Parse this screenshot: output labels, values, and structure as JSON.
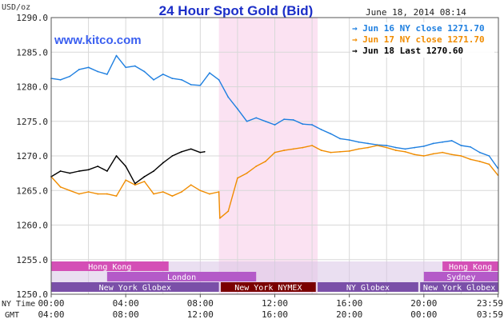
{
  "header": {
    "title": "24 Hour Spot Gold (Bid)",
    "date": "June 18, 2014 08:14",
    "y_unit": "USD/oz",
    "watermark": "www.kitco.com"
  },
  "legend": [
    {
      "label": "Jun 16 NY close 1271.70",
      "color": "#1e7fe0"
    },
    {
      "label": "Jun 17 NY close 1271.70",
      "color": "#f08c00"
    },
    {
      "label": "Jun 18 Last 1270.60",
      "color": "#000000"
    }
  ],
  "axis_rows": {
    "ny_time_label": "NY Time",
    "gmt_label": "GMT",
    "ny_time_ticks": [
      "00:00",
      "04:00",
      "08:00",
      "12:00",
      "16:00",
      "20:00",
      "23:59"
    ],
    "gmt_ticks": [
      "04:00",
      "08:00",
      "12:00",
      "16:00",
      "20:00",
      "00:00",
      "03:59"
    ]
  },
  "sessions": [
    {
      "label": "Hong Kong",
      "row": 0,
      "start": 0.0,
      "end": 6.3,
      "color": "#d44fb6",
      "text_color": "#ffffff"
    },
    {
      "label": "Hong Kong",
      "row": 0,
      "start": 21.0,
      "end": 24.0,
      "color": "#d44fb6",
      "text_color": "#ffffff"
    },
    {
      "label": "London",
      "row": 1,
      "start": 3.0,
      "end": 11.0,
      "color": "#b45ac8",
      "text_color": "#ffffff"
    },
    {
      "label": "Sydney",
      "row": 1,
      "start": 20.0,
      "end": 24.0,
      "color": "#b45ac8",
      "text_color": "#ffffff"
    },
    {
      "label": "New York Globex",
      "row": 2,
      "start": 0.0,
      "end": 9.0,
      "color": "#7a4fa8",
      "text_color": "#ffffff"
    },
    {
      "label": "New York NYMEX",
      "row": 2,
      "start": 9.1,
      "end": 14.2,
      "color": "#7a0000",
      "text_color": "#ffffff"
    },
    {
      "label": "NY Globex",
      "row": 2,
      "start": 14.3,
      "end": 19.7,
      "color": "#7a4fa8",
      "text_color": "#ffffff"
    },
    {
      "label": "New York Globex",
      "row": 2,
      "start": 19.8,
      "end": 24.0,
      "color": "#7a4fa8",
      "text_color": "#ffffff"
    }
  ],
  "colors": {
    "background": "#ffffff",
    "grid": "#d8d8d8",
    "title": "#1c2fc8",
    "nymex_highlight": "#fbe2f2",
    "session_base": "#d8c5e6"
  },
  "chart_data": {
    "type": "line",
    "title": "24 Hour Spot Gold (Bid)",
    "xlabel": "NY Time",
    "ylabel": "USD/oz",
    "x_unit": "hours (NY time)",
    "xlim": [
      0,
      24
    ],
    "ylim": [
      1250,
      1290
    ],
    "yticks": [
      1250.0,
      1255.0,
      1260.0,
      1265.0,
      1270.0,
      1275.0,
      1280.0,
      1285.0,
      1290.0
    ],
    "grid": true,
    "legend_position": "top-right",
    "highlight_band": {
      "start": 9.0,
      "end": 14.3
    },
    "series": [
      {
        "name": "Jun 16 NY close 1271.70",
        "color": "#1e7fe0",
        "x": [
          0.0,
          0.5,
          1.0,
          1.5,
          2.0,
          2.5,
          3.0,
          3.5,
          4.0,
          4.5,
          5.0,
          5.5,
          6.0,
          6.5,
          7.0,
          7.5,
          8.0,
          8.5,
          9.0,
          9.5,
          10.0,
          10.5,
          11.0,
          11.5,
          12.0,
          12.5,
          13.0,
          13.5,
          14.0,
          14.5,
          15.0,
          15.5,
          16.0,
          16.5,
          17.0,
          17.5,
          18.0,
          18.5,
          19.0,
          19.5,
          20.0,
          20.5,
          21.0,
          21.5,
          22.0,
          22.5,
          23.0,
          23.5,
          23.98
        ],
        "y": [
          1281.2,
          1281.0,
          1281.5,
          1282.5,
          1282.8,
          1282.2,
          1281.8,
          1284.5,
          1282.8,
          1283.0,
          1282.2,
          1281.0,
          1281.8,
          1281.2,
          1281.0,
          1280.3,
          1280.2,
          1282.0,
          1281.0,
          1278.5,
          1276.8,
          1275.0,
          1275.5,
          1275.0,
          1274.5,
          1275.3,
          1275.2,
          1274.6,
          1274.5,
          1273.8,
          1273.2,
          1272.5,
          1272.3,
          1272.0,
          1271.8,
          1271.6,
          1271.5,
          1271.2,
          1271.0,
          1271.2,
          1271.4,
          1271.8,
          1272.0,
          1272.2,
          1271.5,
          1271.3,
          1270.5,
          1270.0,
          1268.2
        ]
      },
      {
        "name": "Jun 17 NY close 1271.70",
        "color": "#f08c00",
        "x": [
          0.0,
          0.5,
          1.0,
          1.5,
          2.0,
          2.5,
          3.0,
          3.5,
          4.0,
          4.5,
          5.0,
          5.5,
          6.0,
          6.5,
          7.0,
          7.5,
          8.0,
          8.5,
          9.0,
          9.05,
          9.5,
          10.0,
          10.5,
          11.0,
          11.5,
          12.0,
          12.5,
          13.0,
          13.5,
          14.0,
          14.5,
          15.0,
          15.5,
          16.0,
          16.5,
          17.0,
          17.5,
          18.0,
          18.5,
          19.0,
          19.5,
          20.0,
          20.5,
          21.0,
          21.5,
          22.0,
          22.5,
          23.0,
          23.5,
          23.98
        ],
        "y": [
          1267.0,
          1265.5,
          1265.0,
          1264.5,
          1264.8,
          1264.5,
          1264.5,
          1264.2,
          1266.5,
          1265.8,
          1266.3,
          1264.5,
          1264.8,
          1264.2,
          1264.8,
          1265.8,
          1265.0,
          1264.5,
          1264.8,
          1261.0,
          1262.0,
          1266.8,
          1267.5,
          1268.5,
          1269.2,
          1270.5,
          1270.8,
          1271.0,
          1271.2,
          1271.5,
          1270.8,
          1270.5,
          1270.6,
          1270.7,
          1271.0,
          1271.2,
          1271.5,
          1271.2,
          1270.8,
          1270.6,
          1270.2,
          1270.0,
          1270.3,
          1270.5,
          1270.2,
          1270.0,
          1269.5,
          1269.2,
          1268.8,
          1267.2
        ]
      },
      {
        "name": "Jun 18 Last 1270.60",
        "color": "#000000",
        "x": [
          0.0,
          0.5,
          1.0,
          1.5,
          2.0,
          2.5,
          3.0,
          3.5,
          4.0,
          4.5,
          5.0,
          5.5,
          6.0,
          6.5,
          7.0,
          7.5,
          8.0,
          8.23
        ],
        "y": [
          1267.0,
          1267.8,
          1267.5,
          1267.8,
          1268.0,
          1268.5,
          1267.8,
          1270.0,
          1268.5,
          1266.0,
          1267.0,
          1267.8,
          1269.0,
          1270.0,
          1270.6,
          1271.0,
          1270.5,
          1270.6
        ]
      }
    ]
  }
}
